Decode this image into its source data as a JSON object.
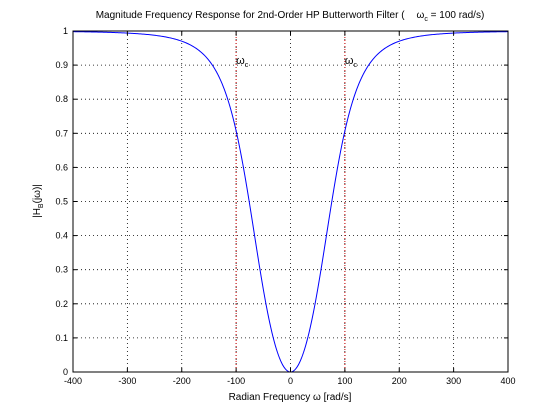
{
  "chart_data": {
    "type": "line",
    "title": "Magnitude Frequency Response for 2nd-Order HP Butterworth Filter (   ωc = 100 rad/s)",
    "title_parts": {
      "main": "Magnitude Frequency Response for 2nd-Order HP Butterworth Filter (",
      "omega": "ω",
      "sub": "c",
      "rest": " = 100 rad/s)"
    },
    "xlabel": "Radian Frequency  ω [rad/s]",
    "ylabel": "|H_B(jω)|",
    "ylabel_parts": {
      "pre": "|H",
      "sub": "B",
      "post": "(jω)|"
    },
    "xlim": [
      -400,
      400
    ],
    "ylim": [
      0,
      1
    ],
    "xticks": [
      -400,
      -300,
      -200,
      -100,
      0,
      100,
      200,
      300,
      400
    ],
    "yticks": [
      0,
      0.1,
      0.2,
      0.3,
      0.4,
      0.5,
      0.6,
      0.7,
      0.8,
      0.9,
      1
    ],
    "grid": true,
    "series": [
      {
        "color": "#0000ff",
        "x": [
          -400,
          -375,
          -350,
          -325,
          -300,
          -275,
          -250,
          -225,
          -200,
          -175,
          -150,
          -125,
          -110,
          -100,
          -90,
          -75,
          -60,
          -50,
          -40,
          -30,
          -20,
          -10,
          0,
          10,
          20,
          30,
          40,
          50,
          60,
          75,
          90,
          100,
          110,
          125,
          150,
          175,
          200,
          225,
          250,
          275,
          300,
          325,
          350,
          375,
          400
        ],
        "y": [
          0.9981,
          0.9967,
          0.9945,
          0.9916,
          0.9879,
          0.9826,
          0.975,
          0.9633,
          0.9701,
          0.9515,
          0.9148,
          0.8453,
          0.7858,
          0.7071,
          0.6291,
          0.4877,
          0.3331,
          0.2425,
          0.158,
          0.0896,
          0.04,
          0.01,
          0,
          0.01,
          0.04,
          0.0896,
          0.158,
          0.2425,
          0.3331,
          0.4877,
          0.6291,
          0.7071,
          0.7858,
          0.8453,
          0.9148,
          0.9515,
          0.9701,
          0.9633,
          0.975,
          0.9826,
          0.9879,
          0.9916,
          0.9945,
          0.9967,
          0.9981
        ]
      }
    ],
    "cutoff_lines": {
      "color": "#cc0000",
      "x": [
        -100,
        100
      ],
      "label_omega": "ω",
      "label_sub": "c"
    }
  }
}
